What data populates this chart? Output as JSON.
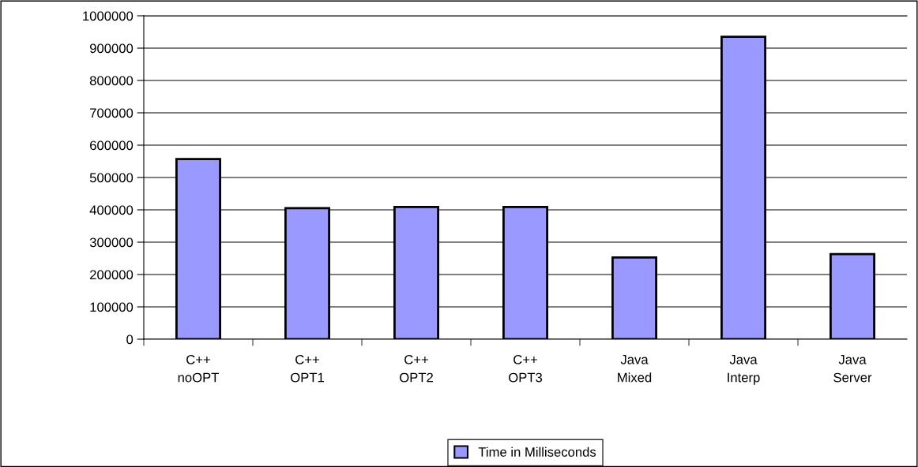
{
  "chart_data": {
    "type": "bar",
    "categories": [
      "C++\nnoOPT",
      "C++\nOPT1",
      "C++\nOPT2",
      "C++\nOPT3",
      "Java\nMixed",
      "Java\nInterp",
      "Java\nServer"
    ],
    "series": [
      {
        "name": "Time in Milliseconds",
        "color": "#9999ff",
        "values": [
          557000,
          405000,
          409000,
          409000,
          253000,
          935000,
          263000
        ]
      }
    ],
    "ylim": [
      0,
      1000000
    ],
    "yticks": [
      0,
      100000,
      200000,
      300000,
      400000,
      500000,
      600000,
      700000,
      800000,
      900000,
      1000000
    ],
    "grid": "y",
    "legend": "bottom"
  }
}
